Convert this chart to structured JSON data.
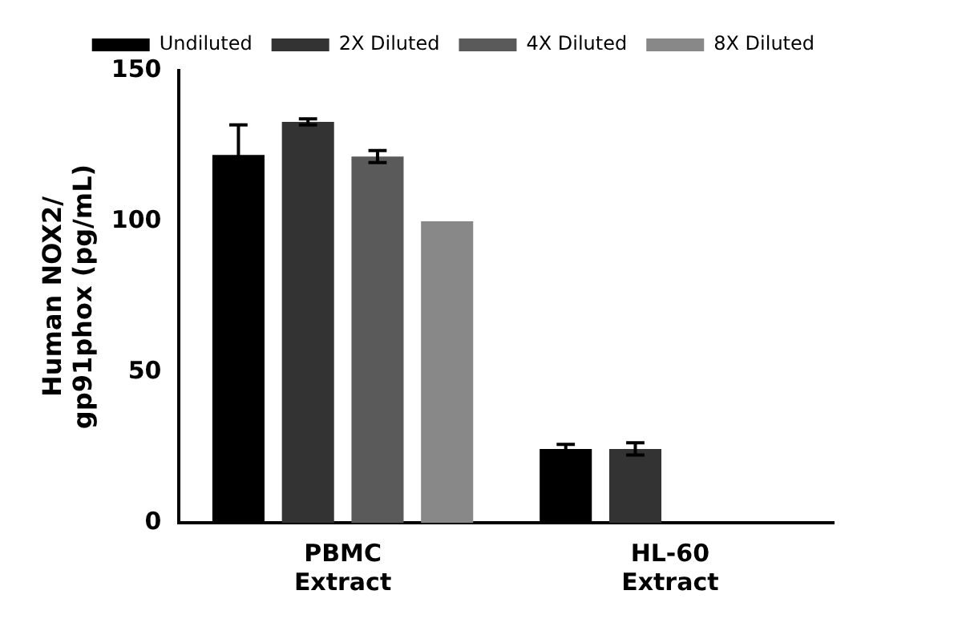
{
  "chart_data": {
    "type": "bar",
    "ylabel": "Human NOX2/\ngp91phox (pg/mL)",
    "categories": [
      "PBMC Extract",
      "HL-60 Extract"
    ],
    "ylim": [
      0,
      150
    ],
    "yticks": [
      0,
      50,
      100,
      150
    ],
    "grid": false,
    "legend": "top",
    "series": [
      {
        "name": "Undiluted",
        "color": "#000000",
        "values": [
          122,
          24.5
        ],
        "errors": [
          10,
          1.5
        ]
      },
      {
        "name": "2X Diluted",
        "color": "#333333",
        "values": [
          133,
          24.5
        ],
        "errors": [
          1,
          2
        ]
      },
      {
        "name": "4X Diluted",
        "color": "#5a5a5a",
        "values": [
          121.5,
          null
        ],
        "errors": [
          2,
          null
        ]
      },
      {
        "name": "8X Diluted",
        "color": "#888888",
        "values": [
          100,
          null
        ],
        "errors": [
          null,
          null
        ]
      }
    ]
  }
}
